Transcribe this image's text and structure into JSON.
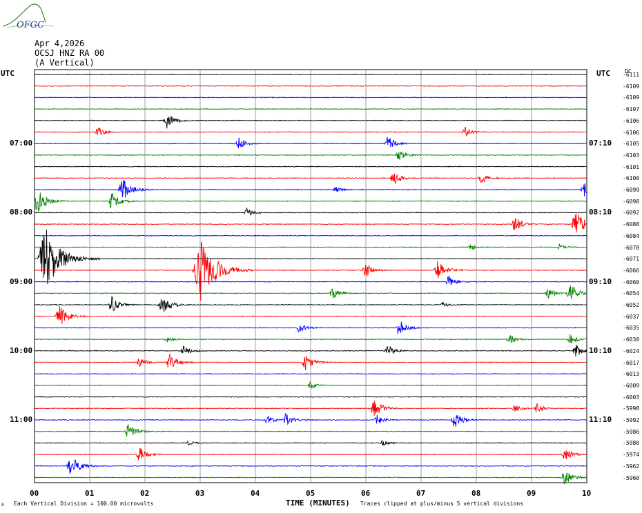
{
  "header": {
    "logo_text": "OFGC",
    "date": "Apr 4,2026",
    "station": "OCSJ HNZ RA 00",
    "component": "(A Vertical)"
  },
  "axes": {
    "left_utc": "UTC",
    "right_utc": "UTC",
    "dc_label": "DC"
  },
  "footer": {
    "vertical_division": "Each Vertical Division =  100.00 microvolts",
    "xlabel": "TIME (MINUTES)",
    "clip_note": "Traces clipped at plus/minus 5 vertical divisions",
    "corner_mark": "A"
  },
  "chart_data": {
    "type": "line",
    "x_ticks": [
      "00",
      "01",
      "02",
      "03",
      "04",
      "05",
      "06",
      "07",
      "08",
      "09",
      "10"
    ],
    "xlim": [
      0,
      10
    ],
    "xlabel": "TIME (MINUTES)",
    "trace_colors": [
      "#000000",
      "#ff0000",
      "#0000ff",
      "#008000"
    ],
    "left_time_labels": [
      {
        "row": 6,
        "label": "07:00"
      },
      {
        "row": 12,
        "label": "08:00"
      },
      {
        "row": 18,
        "label": "09:00"
      },
      {
        "row": 24,
        "label": "10:00"
      },
      {
        "row": 30,
        "label": "11:00"
      }
    ],
    "right_time_labels": [
      {
        "row": 6,
        "label": "07:10"
      },
      {
        "row": 12,
        "label": "08:10"
      },
      {
        "row": 18,
        "label": "09:10"
      },
      {
        "row": 24,
        "label": "10:10"
      },
      {
        "row": 30,
        "label": "11:10"
      }
    ],
    "dc_offsets": [
      "-6111",
      "-6109",
      "-6109",
      "-6107",
      "-6106",
      "-6106",
      "-6105",
      "-6103",
      "-6101",
      "-6100",
      "-6099",
      "-6098",
      "-6092",
      "-6088",
      "-6084",
      "-6078",
      "-6071",
      "-6066",
      "-6060",
      "-6054",
      "-6052",
      "-6037",
      "-6035",
      "-6030",
      "-6024",
      "-6017",
      "-6013",
      "-6009",
      "-6003",
      "-5998",
      "-5992",
      "-5986",
      "-5980",
      "-5974",
      "-5962",
      "-5960"
    ],
    "events": [
      {
        "row": 4,
        "t": 2.4,
        "amp": 1.3
      },
      {
        "row": 5,
        "t": 1.15,
        "amp": 0.8
      },
      {
        "row": 5,
        "t": 7.8,
        "amp": 0.8
      },
      {
        "row": 6,
        "t": 3.7,
        "amp": 1.0
      },
      {
        "row": 6,
        "t": 6.4,
        "amp": 1.2
      },
      {
        "row": 7,
        "t": 6.6,
        "amp": 1.0
      },
      {
        "row": 9,
        "t": 6.5,
        "amp": 1.1
      },
      {
        "row": 9,
        "t": 8.1,
        "amp": 0.9
      },
      {
        "row": 10,
        "t": 1.6,
        "amp": 2.0
      },
      {
        "row": 10,
        "t": 5.45,
        "amp": 0.5
      },
      {
        "row": 10,
        "t": 9.95,
        "amp": 1.2
      },
      {
        "row": 11,
        "t": 1.4,
        "amp": 1.6
      },
      {
        "row": 11,
        "t": 0.05,
        "amp": 2.0
      },
      {
        "row": 12,
        "t": 3.85,
        "amp": 0.8
      },
      {
        "row": 13,
        "t": 8.7,
        "amp": 1.2
      },
      {
        "row": 13,
        "t": 9.8,
        "amp": 2.2
      },
      {
        "row": 15,
        "t": 7.9,
        "amp": 0.5
      },
      {
        "row": 15,
        "t": 9.5,
        "amp": 0.5
      },
      {
        "row": 16,
        "t": 0.2,
        "amp": 5.0
      },
      {
        "row": 17,
        "t": 3.0,
        "amp": 5.0
      },
      {
        "row": 17,
        "t": 6.0,
        "amp": 1.2
      },
      {
        "row": 17,
        "t": 7.3,
        "amp": 1.5
      },
      {
        "row": 18,
        "t": 7.5,
        "amp": 1.0
      },
      {
        "row": 19,
        "t": 5.4,
        "amp": 0.9
      },
      {
        "row": 19,
        "t": 9.3,
        "amp": 0.8
      },
      {
        "row": 19,
        "t": 9.7,
        "amp": 1.5
      },
      {
        "row": 20,
        "t": 1.4,
        "amp": 1.5
      },
      {
        "row": 20,
        "t": 2.3,
        "amp": 1.7
      },
      {
        "row": 20,
        "t": 7.4,
        "amp": 0.5
      },
      {
        "row": 21,
        "t": 0.45,
        "amp": 1.8
      },
      {
        "row": 22,
        "t": 4.8,
        "amp": 0.9
      },
      {
        "row": 22,
        "t": 6.6,
        "amp": 1.3
      },
      {
        "row": 23,
        "t": 2.4,
        "amp": 0.5
      },
      {
        "row": 23,
        "t": 8.6,
        "amp": 0.9
      },
      {
        "row": 23,
        "t": 9.7,
        "amp": 0.9
      },
      {
        "row": 24,
        "t": 2.7,
        "amp": 0.9
      },
      {
        "row": 24,
        "t": 6.4,
        "amp": 0.9
      },
      {
        "row": 24,
        "t": 9.8,
        "amp": 1.0
      },
      {
        "row": 25,
        "t": 1.9,
        "amp": 0.9
      },
      {
        "row": 25,
        "t": 2.45,
        "amp": 1.5
      },
      {
        "row": 25,
        "t": 4.9,
        "amp": 1.4
      },
      {
        "row": 27,
        "t": 5.0,
        "amp": 0.7
      },
      {
        "row": 29,
        "t": 6.15,
        "amp": 1.6
      },
      {
        "row": 29,
        "t": 8.7,
        "amp": 0.7
      },
      {
        "row": 29,
        "t": 9.1,
        "amp": 0.8
      },
      {
        "row": 30,
        "t": 4.2,
        "amp": 0.9
      },
      {
        "row": 30,
        "t": 4.55,
        "amp": 1.0
      },
      {
        "row": 30,
        "t": 6.2,
        "amp": 0.8
      },
      {
        "row": 30,
        "t": 7.6,
        "amp": 1.4
      },
      {
        "row": 31,
        "t": 1.7,
        "amp": 1.4
      },
      {
        "row": 32,
        "t": 2.8,
        "amp": 0.4
      },
      {
        "row": 32,
        "t": 6.3,
        "amp": 0.5
      },
      {
        "row": 33,
        "t": 1.9,
        "amp": 1.2
      },
      {
        "row": 33,
        "t": 9.6,
        "amp": 1.1
      },
      {
        "row": 34,
        "t": 0.65,
        "amp": 1.8
      },
      {
        "row": 35,
        "t": 9.6,
        "amp": 1.3
      }
    ]
  }
}
